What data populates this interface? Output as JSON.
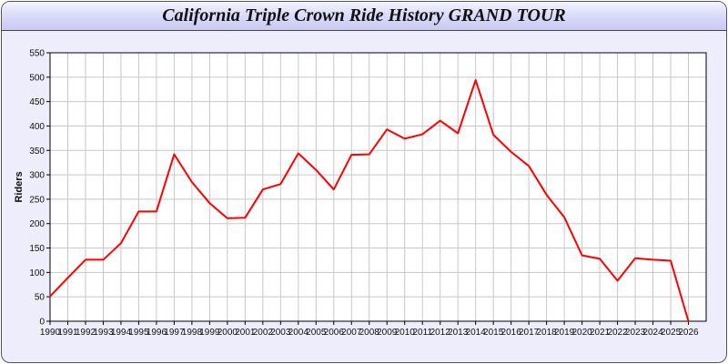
{
  "chart_data": {
    "type": "line",
    "title": "California Triple Crown Ride History GRAND TOUR",
    "xlabel": "",
    "ylabel": "Riders",
    "xlim": [
      1990,
      2027
    ],
    "ylim": [
      0,
      550
    ],
    "y_ticks": [
      0,
      50,
      100,
      150,
      200,
      250,
      300,
      350,
      400,
      450,
      500,
      550
    ],
    "grid": true,
    "line_color": "#ff0000",
    "x": [
      1990,
      1991,
      1992,
      1993,
      1994,
      1995,
      1996,
      1997,
      1998,
      1999,
      2000,
      2001,
      2002,
      2003,
      2004,
      2005,
      2006,
      2007,
      2008,
      2009,
      2010,
      2011,
      2012,
      2013,
      2014,
      2015,
      2016,
      2017,
      2018,
      2019,
      2020,
      2021,
      2022,
      2023,
      2024,
      2025,
      2026
    ],
    "values": [
      51,
      89,
      126,
      126,
      160,
      225,
      225,
      342,
      285,
      242,
      211,
      212,
      270,
      281,
      344,
      310,
      270,
      341,
      342,
      393,
      374,
      383,
      411,
      385,
      494,
      382,
      347,
      318,
      259,
      213,
      135,
      128,
      83,
      129,
      126,
      124,
      0
    ]
  }
}
